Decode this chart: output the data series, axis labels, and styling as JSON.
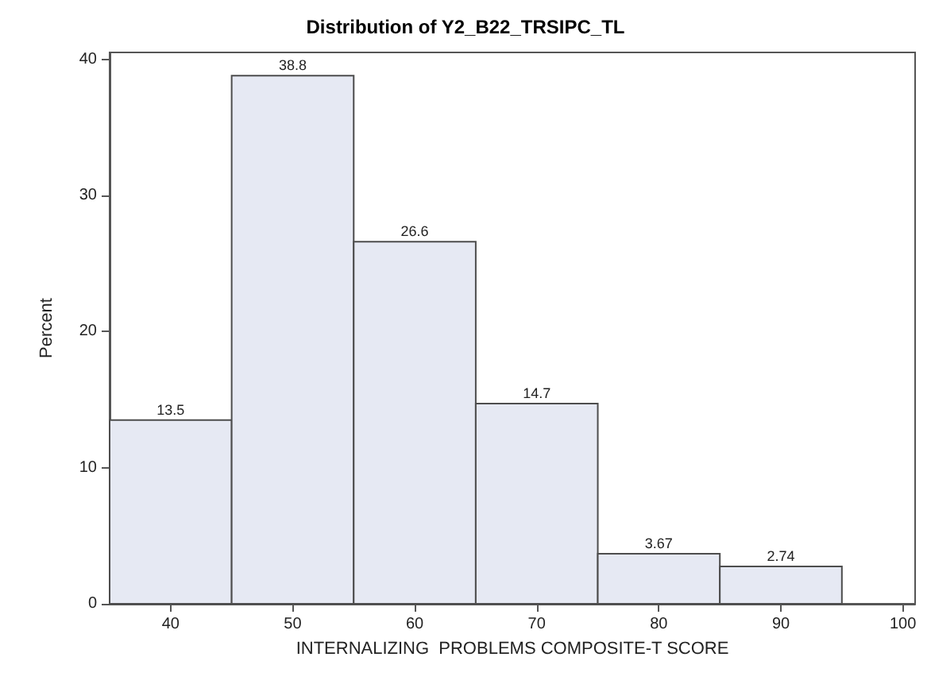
{
  "chart_data": {
    "type": "histogram",
    "title": "Distribution of Y2_B22_TRSIPC_TL",
    "xlabel": "INTERNALIZING  PROBLEMS COMPOSITE-T SCORE",
    "ylabel": "Percent",
    "bins": [
      35,
      45,
      55,
      65,
      75,
      85,
      95
    ],
    "values": [
      13.5,
      38.8,
      26.6,
      14.7,
      3.67,
      2.74
    ],
    "color": "#e6e9f3",
    "xlim": [
      35,
      101
    ],
    "xticks": [
      40,
      50,
      60,
      70,
      80,
      90,
      100
    ],
    "ylim": [
      0,
      40.5
    ],
    "yticks": [
      0,
      10,
      20,
      30,
      40
    ],
    "data_labels": true
  }
}
